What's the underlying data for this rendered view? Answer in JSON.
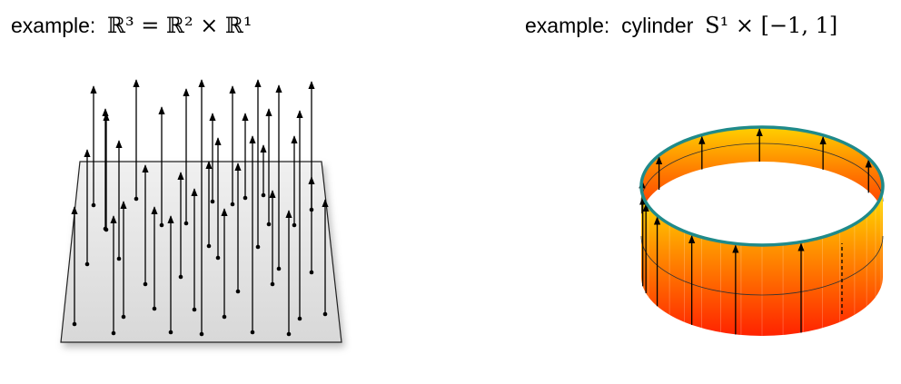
{
  "left_example": {
    "prefix": "example:",
    "formula": "ℝ³ = ℝ² × ℝ¹",
    "figure": "plane-with-vertical-vectors"
  },
  "right_example": {
    "prefix": "example:",
    "name": "cylinder",
    "formula": "S¹ × [−1, 1]",
    "figure": "cylinder-with-vertical-vectors"
  },
  "colors": {
    "plane_fill": "#e4e4e4",
    "cylinder_top": "#ffe600",
    "cylinder_bottom": "#ff2a00",
    "rim": "#1f8a8a",
    "arrow": "#000000"
  }
}
